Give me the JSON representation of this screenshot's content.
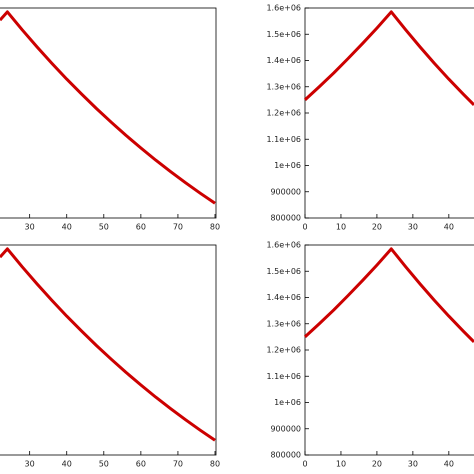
{
  "chart_data": [
    {
      "type": "line",
      "x": [
        22,
        24,
        28,
        32,
        36,
        40,
        44,
        48,
        52,
        56,
        60,
        64,
        68,
        72,
        76,
        80
      ],
      "series": [
        {
          "color": "#cc0000",
          "values": [
            1553900,
            1585000,
            1516800,
            1451500,
            1389100,
            1329200,
            1272000,
            1217200,
            1164800,
            1114700,
            1066700,
            1020700,
            976800,
            934800,
            894600,
            856100
          ]
        }
      ],
      "xlim": [
        22,
        80
      ],
      "xticks": [
        30,
        40,
        50,
        60,
        70,
        80
      ],
      "ylim": [
        800000,
        1600000
      ]
    },
    {
      "type": "line",
      "x": [
        0,
        4,
        8,
        12,
        16,
        20,
        24,
        28,
        32,
        36,
        40,
        44,
        47
      ],
      "series": [
        {
          "color": "#cc0000",
          "values": [
            1250000,
            1300500,
            1352900,
            1407500,
            1464300,
            1523400,
            1585000,
            1516800,
            1451500,
            1389100,
            1329200,
            1272000,
            1230800
          ]
        }
      ],
      "xlim": [
        0,
        47
      ],
      "xticks": [
        0,
        10,
        20,
        30,
        40
      ],
      "ylim": [
        800000,
        1600000
      ],
      "yticks": [
        800000,
        900000,
        {
          "value": 1000000,
          "label": "1e+06"
        },
        {
          "value": 1100000,
          "label": "1.1e+06"
        },
        {
          "value": 1200000,
          "label": "1.2e+06"
        },
        {
          "value": 1300000,
          "label": "1.3e+06"
        },
        {
          "value": 1400000,
          "label": "1.4e+06"
        },
        {
          "value": 1500000,
          "label": "1.5e+06"
        },
        {
          "value": 1600000,
          "label": "1.6e+06"
        }
      ]
    },
    {
      "type": "line",
      "x": [
        22,
        24,
        28,
        32,
        36,
        40,
        44,
        48,
        52,
        56,
        60,
        64,
        68,
        72,
        76,
        80
      ],
      "series": [
        {
          "color": "#cc0000",
          "values": [
            1553900,
            1585000,
            1516800,
            1451500,
            1389100,
            1329200,
            1272000,
            1217200,
            1164800,
            1114700,
            1066700,
            1020700,
            976800,
            934800,
            894600,
            856100
          ]
        }
      ],
      "xlim": [
        22,
        80
      ],
      "xticks": [
        30,
        40,
        50,
        60,
        70,
        80
      ],
      "ylim": [
        800000,
        1600000
      ]
    },
    {
      "type": "line",
      "x": [
        0,
        4,
        8,
        12,
        16,
        20,
        24,
        28,
        32,
        36,
        40,
        44,
        47
      ],
      "series": [
        {
          "color": "#cc0000",
          "values": [
            1250000,
            1300500,
            1352900,
            1407500,
            1464300,
            1523400,
            1585000,
            1516800,
            1451500,
            1389100,
            1329200,
            1272000,
            1230800
          ]
        }
      ],
      "xlim": [
        0,
        47
      ],
      "xticks": [
        0,
        10,
        20,
        30,
        40
      ],
      "ylim": [
        800000,
        1600000
      ],
      "yticks": [
        800000,
        900000,
        {
          "value": 1000000,
          "label": "1e+06"
        },
        {
          "value": 1100000,
          "label": "1.1e+06"
        },
        {
          "value": 1200000,
          "label": "1.2e+06"
        },
        {
          "value": 1300000,
          "label": "1.3e+06"
        },
        {
          "value": 1400000,
          "label": "1.4e+06"
        },
        {
          "value": 1500000,
          "label": "1.5e+06"
        },
        {
          "value": 1600000,
          "label": "1.6e+06"
        }
      ]
    }
  ]
}
